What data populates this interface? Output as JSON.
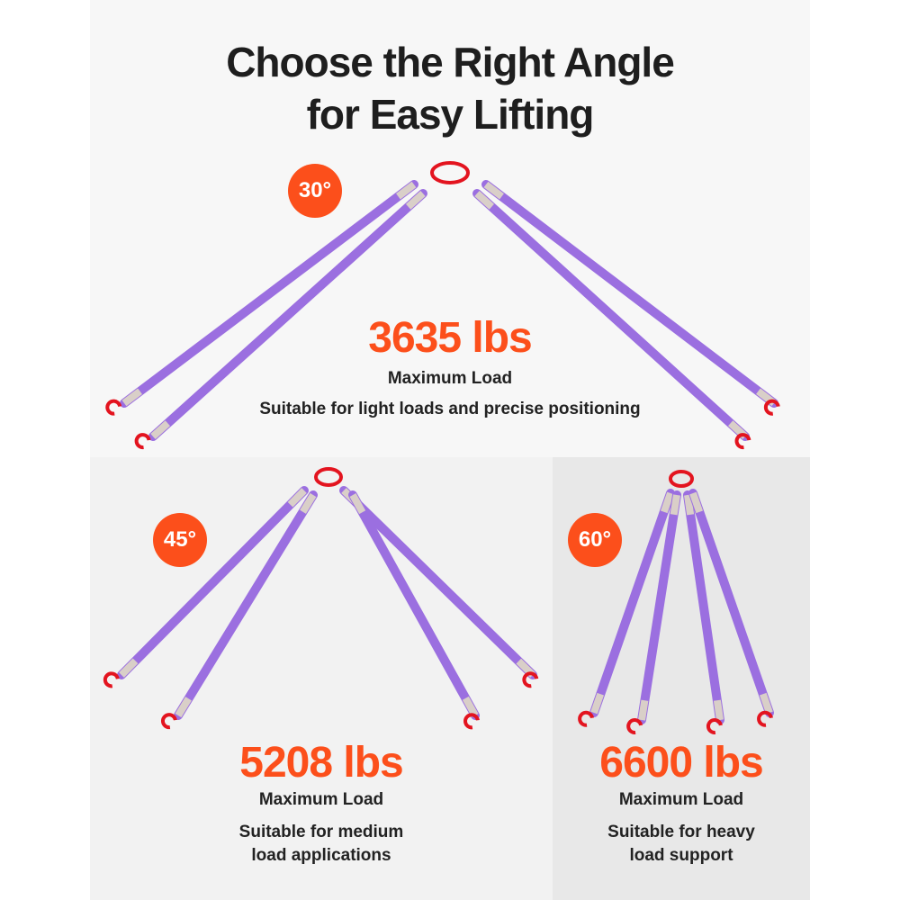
{
  "title_line1": "Choose the Right Angle",
  "title_line2": "for Easy Lifting",
  "colors": {
    "accent": "#fc4f1b",
    "sling": "#9b6fe0",
    "hook": "#e3141f"
  },
  "options": [
    {
      "angle": "30°",
      "load": "3635 lbs",
      "label": "Maximum Load",
      "desc_lines": [
        "Suitable for light loads and precise positioning"
      ]
    },
    {
      "angle": "45°",
      "load": "5208 lbs",
      "label": "Maximum Load",
      "desc_lines": [
        "Suitable for medium",
        "load applications"
      ]
    },
    {
      "angle": "60°",
      "load": "6600 lbs",
      "label": "Maximum Load",
      "desc_lines": [
        "Suitable for heavy",
        "load support"
      ]
    }
  ]
}
